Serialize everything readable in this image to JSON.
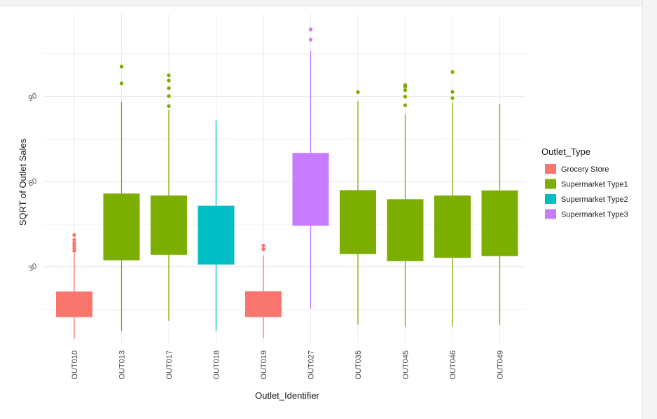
{
  "chart_data": {
    "type": "box",
    "xlabel": "Outlet_Identifier",
    "ylabel": "SQRT of Outlet Sales",
    "ylim": [
      0,
      115
    ],
    "yticks": [
      30,
      60,
      90
    ],
    "grid": true,
    "legend_position": "right",
    "legend_title": "Outlet_Type",
    "colors": {
      "Grocery Store": "#F8766D",
      "Supermarket Type1": "#7CAE00",
      "Supermarket Type2": "#00BFC4",
      "Supermarket Type3": "#C77CFF"
    },
    "legend": [
      "Grocery Store",
      "Supermarket Type1",
      "Supermarket Type2",
      "Supermarket Type3"
    ],
    "boxes": [
      {
        "id": "OUT010",
        "type": "Grocery Store",
        "whisker_low": 4.7,
        "q1": 12.3,
        "q3": 21.3,
        "whisker_high": 34.7,
        "outliers": [
          35.6,
          36.5,
          37.5,
          38.4,
          39.5,
          41.2
        ]
      },
      {
        "id": "OUT013",
        "type": "Supermarket Type1",
        "whisker_low": 7.5,
        "q1": 32.3,
        "q3": 55.8,
        "whisker_high": 88.1,
        "outliers": [
          94.6,
          100.5
        ]
      },
      {
        "id": "OUT017",
        "type": "Supermarket Type1",
        "whisker_low": 11.0,
        "q1": 34.2,
        "q3": 55.1,
        "whisker_high": 85.3,
        "outliers": [
          86.6,
          90.1,
          92.9,
          95.6,
          97.4
        ]
      },
      {
        "id": "OUT018",
        "type": "Supermarket Type2",
        "whisker_low": 7.3,
        "q1": 30.8,
        "q3": 51.5,
        "whisker_high": 81.6,
        "outliers": []
      },
      {
        "id": "OUT019",
        "type": "Grocery Store",
        "whisker_low": 4.9,
        "q1": 12.3,
        "q3": 21.4,
        "whisker_high": 34.0,
        "outliers": [
          36.2,
          37.5
        ]
      },
      {
        "id": "OUT027",
        "type": "Supermarket Type3",
        "whisker_low": 15.3,
        "q1": 44.5,
        "q3": 70.1,
        "whisker_high": 106.0,
        "outliers": [
          110.0,
          113.6
        ]
      },
      {
        "id": "OUT035",
        "type": "Supermarket Type1",
        "whisker_low": 9.6,
        "q1": 34.5,
        "q3": 57.0,
        "whisker_high": 88.5,
        "outliers": [
          91.5
        ]
      },
      {
        "id": "OUT045",
        "type": "Supermarket Type1",
        "whisker_low": 8.7,
        "q1": 32.0,
        "q3": 53.8,
        "whisker_high": 83.7,
        "outliers": [
          86.9,
          89.9,
          92.2,
          93.4,
          94.0
        ]
      },
      {
        "id": "OUT046",
        "type": "Supermarket Type1",
        "whisker_low": 9.1,
        "q1": 33.2,
        "q3": 55.1,
        "whisker_high": 87.9,
        "outliers": [
          89.4,
          91.6,
          98.6
        ]
      },
      {
        "id": "OUT049",
        "type": "Supermarket Type1",
        "whisker_low": 9.5,
        "q1": 33.8,
        "q3": 56.9,
        "whisker_high": 87.3,
        "outliers": []
      }
    ]
  }
}
